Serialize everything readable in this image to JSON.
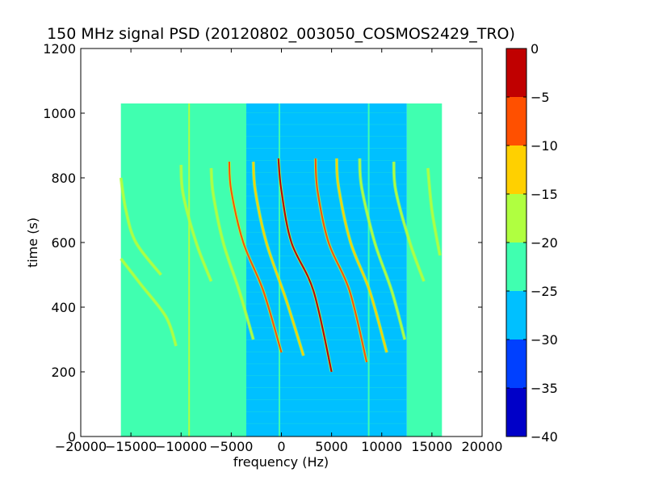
{
  "chart_data": {
    "type": "heatmap",
    "title": "150 MHz signal PSD (20120802_003050_COSMOS2429_TRO)",
    "xlabel": "frequency (Hz)",
    "ylabel": "time (s)",
    "xlim": [
      -20000,
      20000
    ],
    "ylim": [
      0,
      1200
    ],
    "x_ticks": [
      -20000,
      -15000,
      -10000,
      -5000,
      0,
      5000,
      10000,
      15000,
      20000
    ],
    "y_ticks": [
      0,
      200,
      400,
      600,
      800,
      1000,
      1200
    ],
    "data_extent": {
      "x": [
        -16000,
        16000
      ],
      "y": [
        0,
        1030
      ]
    },
    "grid": false,
    "background_levels": [
      {
        "x_range": [
          -16000,
          -3500
        ],
        "level": -22.5
      },
      {
        "x_range": [
          -3500,
          12500
        ],
        "level": -27.5
      },
      {
        "x_range": [
          12500,
          16000
        ],
        "level": -22.5
      }
    ],
    "vertical_lines": [
      {
        "x": -9200,
        "level": -17.5
      },
      {
        "x": -200,
        "level": -22.5
      },
      {
        "x": 8700,
        "level": -22.5
      }
    ],
    "doppler_traces": [
      {
        "level": -17.5,
        "points": [
          [
            -16000,
            800
          ],
          [
            -15500,
            700
          ],
          [
            -14500,
            600
          ],
          [
            -12000,
            500
          ]
        ]
      },
      {
        "level": -17.5,
        "points": [
          [
            -16000,
            550
          ],
          [
            -14000,
            470
          ],
          [
            -11500,
            370
          ],
          [
            -10500,
            280
          ]
        ]
      },
      {
        "level": -17.5,
        "points": [
          [
            -10000,
            840
          ],
          [
            -9800,
            750
          ],
          [
            -8500,
            600
          ],
          [
            -7000,
            480
          ]
        ]
      },
      {
        "level": -17.5,
        "points": [
          [
            -7000,
            830
          ],
          [
            -6800,
            750
          ],
          [
            -5800,
            600
          ],
          [
            -4200,
            450
          ],
          [
            -2800,
            300
          ]
        ]
      },
      {
        "level": -7.5,
        "points": [
          [
            -5200,
            850
          ],
          [
            -5000,
            760
          ],
          [
            -3800,
            600
          ],
          [
            -1800,
            450
          ],
          [
            0,
            260
          ]
        ]
      },
      {
        "level": -12.5,
        "points": [
          [
            -2800,
            850
          ],
          [
            -2600,
            760
          ],
          [
            -1500,
            600
          ],
          [
            500,
            420
          ],
          [
            2200,
            250
          ]
        ]
      },
      {
        "level": -2.5,
        "points": [
          [
            -300,
            860
          ],
          [
            0,
            760
          ],
          [
            1000,
            600
          ],
          [
            3200,
            450
          ],
          [
            5000,
            200
          ]
        ]
      },
      {
        "level": -7.5,
        "points": [
          [
            3400,
            860
          ],
          [
            3600,
            760
          ],
          [
            4700,
            600
          ],
          [
            6800,
            450
          ],
          [
            8500,
            230
          ]
        ]
      },
      {
        "level": -12.5,
        "points": [
          [
            5500,
            860
          ],
          [
            5700,
            770
          ],
          [
            6900,
            600
          ],
          [
            8800,
            450
          ],
          [
            10500,
            260
          ]
        ]
      },
      {
        "level": -17.5,
        "points": [
          [
            7800,
            860
          ],
          [
            8000,
            770
          ],
          [
            9300,
            600
          ],
          [
            11000,
            450
          ],
          [
            12300,
            300
          ]
        ]
      },
      {
        "level": -17.5,
        "points": [
          [
            11200,
            850
          ],
          [
            11400,
            760
          ],
          [
            12800,
            600
          ],
          [
            14200,
            480
          ]
        ]
      },
      {
        "level": -17.5,
        "points": [
          [
            14600,
            830
          ],
          [
            15000,
            700
          ],
          [
            15800,
            560
          ]
        ]
      }
    ],
    "colorbar": {
      "min": -40,
      "max": 0,
      "ticks": [
        0,
        -5,
        -10,
        -15,
        -20,
        -25,
        -30,
        -35,
        -40
      ],
      "tick_labels": [
        "0",
        "−5",
        "−10",
        "−15",
        "−20",
        "−25",
        "−30",
        "−35",
        "−40"
      ],
      "bands": [
        {
          "from": -40,
          "to": -35,
          "color": "#0000c8"
        },
        {
          "from": -35,
          "to": -30,
          "color": "#0040ff"
        },
        {
          "from": -30,
          "to": -25,
          "color": "#00c0ff"
        },
        {
          "from": -25,
          "to": -20,
          "color": "#40ffb0"
        },
        {
          "from": -20,
          "to": -15,
          "color": "#b0ff40"
        },
        {
          "from": -15,
          "to": -10,
          "color": "#ffd000"
        },
        {
          "from": -10,
          "to": -5,
          "color": "#ff5000"
        },
        {
          "from": -5,
          "to": 0,
          "color": "#c00000"
        }
      ]
    }
  }
}
